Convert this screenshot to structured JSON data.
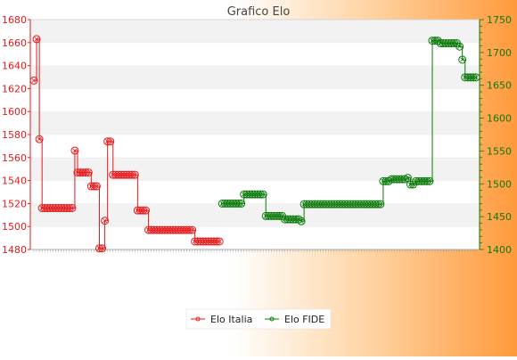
{
  "chart_data": {
    "type": "line",
    "title": "Grafico Elo",
    "xlabel": "",
    "ylabel_left": "",
    "ylabel_right": "",
    "y_left_lim": [
      1480,
      1680
    ],
    "y_left_ticks": [
      1480,
      1500,
      1520,
      1540,
      1560,
      1580,
      1600,
      1620,
      1640,
      1660,
      1680
    ],
    "y_right_lim": [
      1400,
      1750
    ],
    "y_right_ticks": [
      1400,
      1450,
      1500,
      1550,
      1600,
      1650,
      1700,
      1750
    ],
    "grid": "horizontal bands",
    "legend_position": "bottom",
    "series": [
      {
        "name": "Elo Italia",
        "axis": "left",
        "color": "#e41a1c",
        "values": [
          1627,
          1663,
          1576,
          1516,
          1516,
          1516,
          1516,
          1516,
          1516,
          1516,
          1516,
          1516,
          1516,
          1516,
          1516,
          1566,
          1547,
          1547,
          1547,
          1547,
          1547,
          1535,
          1535,
          1535,
          1481,
          1481,
          1505,
          1574,
          1574,
          1545,
          1545,
          1545,
          1545,
          1545,
          1545,
          1545,
          1545,
          1545,
          1514,
          1514,
          1514,
          1514,
          1497,
          1497,
          1497,
          1497,
          1497,
          1497,
          1497,
          1497,
          1497,
          1497,
          1497,
          1497,
          1497,
          1497,
          1497,
          1497,
          1497,
          1487,
          1487,
          1487,
          1487,
          1487,
          1487,
          1487,
          1487,
          1487,
          1487
        ]
      },
      {
        "name": "Elo FIDE",
        "axis": "right",
        "color": "#0a7a0a",
        "start_index": 69,
        "values": [
          1470,
          1470,
          1470,
          1470,
          1470,
          1470,
          1470,
          1470,
          1484,
          1484,
          1484,
          1484,
          1484,
          1484,
          1484,
          1484,
          1451,
          1451,
          1451,
          1451,
          1451,
          1451,
          1451,
          1446,
          1446,
          1446,
          1446,
          1446,
          1446,
          1443,
          1469,
          1469,
          1469,
          1469,
          1469,
          1469,
          1469,
          1469,
          1469,
          1469,
          1469,
          1469,
          1469,
          1469,
          1469,
          1469,
          1469,
          1469,
          1469,
          1469,
          1469,
          1469,
          1469,
          1469,
          1469,
          1469,
          1469,
          1469,
          1469,
          1504,
          1504,
          1504,
          1507,
          1507,
          1507,
          1507,
          1507,
          1507,
          1509,
          1499,
          1499,
          1504,
          1504,
          1504,
          1504,
          1504,
          1504,
          1718,
          1718,
          1718,
          1714,
          1714,
          1714,
          1714,
          1714,
          1714,
          1714,
          1709,
          1689,
          1662,
          1662,
          1662,
          1662,
          1662
        ]
      }
    ]
  }
}
